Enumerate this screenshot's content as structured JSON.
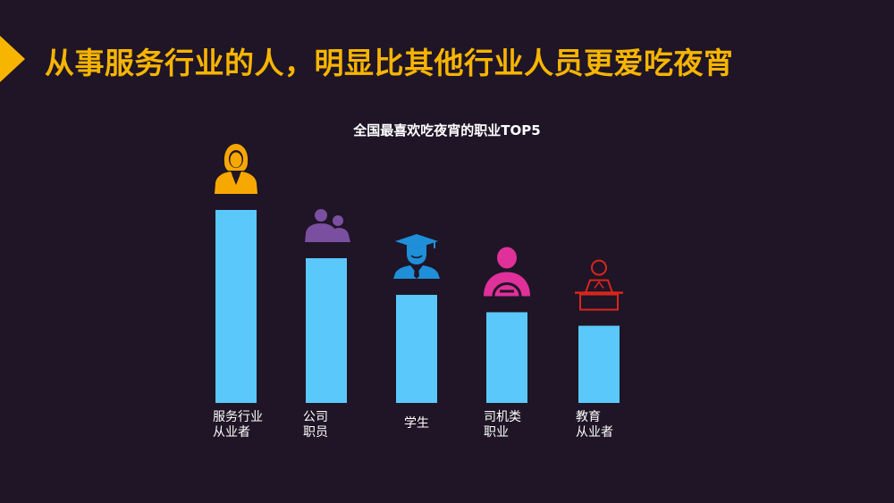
{
  "header": {
    "title": "从事服务行业的人，明显比其他行业人员更爱吃夜宵",
    "accent_color": "#f7b500"
  },
  "chart_data": {
    "type": "bar",
    "title": "全国最喜欢吃夜宵的职业TOP5",
    "categories": [
      [
        "服务行业",
        "从业者"
      ],
      [
        "公司",
        "职员"
      ],
      [
        "学生"
      ],
      [
        "司机类",
        "职业"
      ],
      [
        "教育",
        "从业者"
      ]
    ],
    "values": [
      100,
      75,
      56,
      47,
      40
    ],
    "ylim": [
      0,
      100
    ],
    "bar_color": "#5ac8fa",
    "grid": false,
    "icons": [
      {
        "name": "businesswoman-icon",
        "color": "#f7a800"
      },
      {
        "name": "colleagues-icon",
        "color": "#7b4fa0"
      },
      {
        "name": "graduate-icon",
        "color": "#1e8fd8"
      },
      {
        "name": "driver-icon",
        "color": "#e0309a"
      },
      {
        "name": "teacher-icon",
        "color": "#d8261c"
      }
    ]
  }
}
